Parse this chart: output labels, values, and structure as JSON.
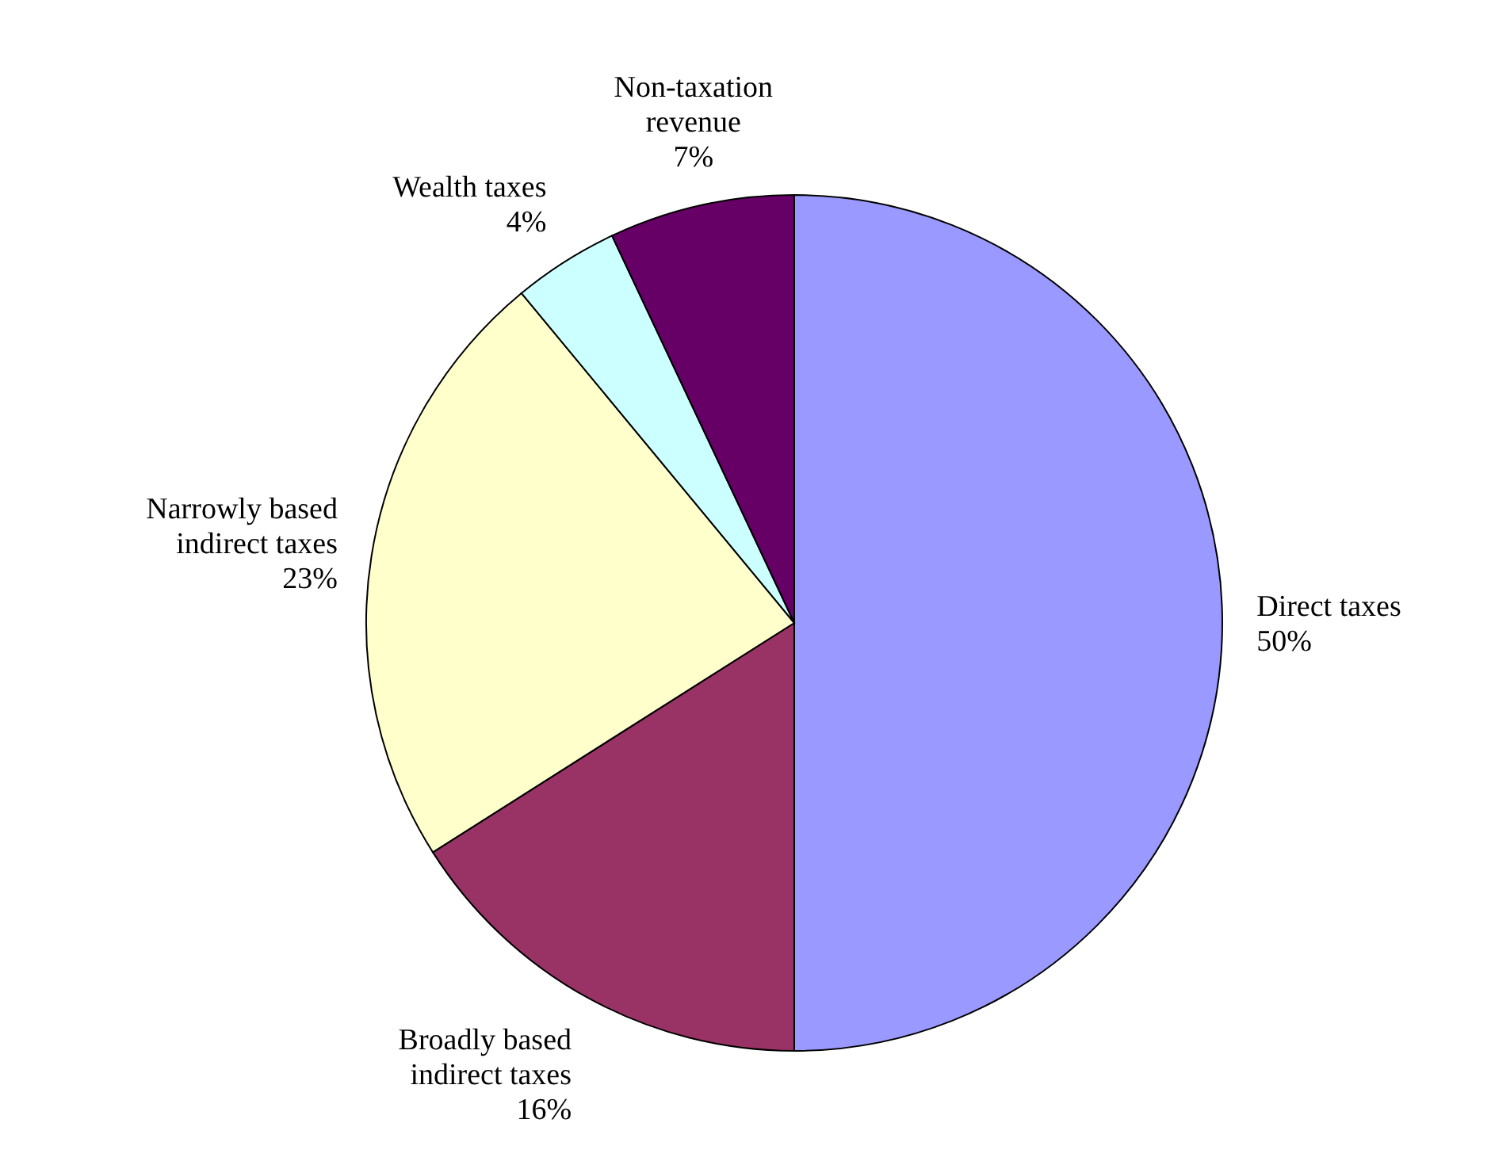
{
  "chart_data": {
    "type": "pie",
    "categories": [
      "Direct taxes",
      "Broadly based indirect taxes",
      "Narrowly based indirect taxes",
      "Wealth taxes",
      "Non-taxation revenue"
    ],
    "values": [
      50,
      16,
      23,
      4,
      7
    ],
    "colors": [
      "#9999ff",
      "#993366",
      "#ffffcc",
      "#ccffff",
      "#660066"
    ],
    "value_labels": [
      "50%",
      "16%",
      "23%",
      "4%",
      "7%"
    ]
  }
}
